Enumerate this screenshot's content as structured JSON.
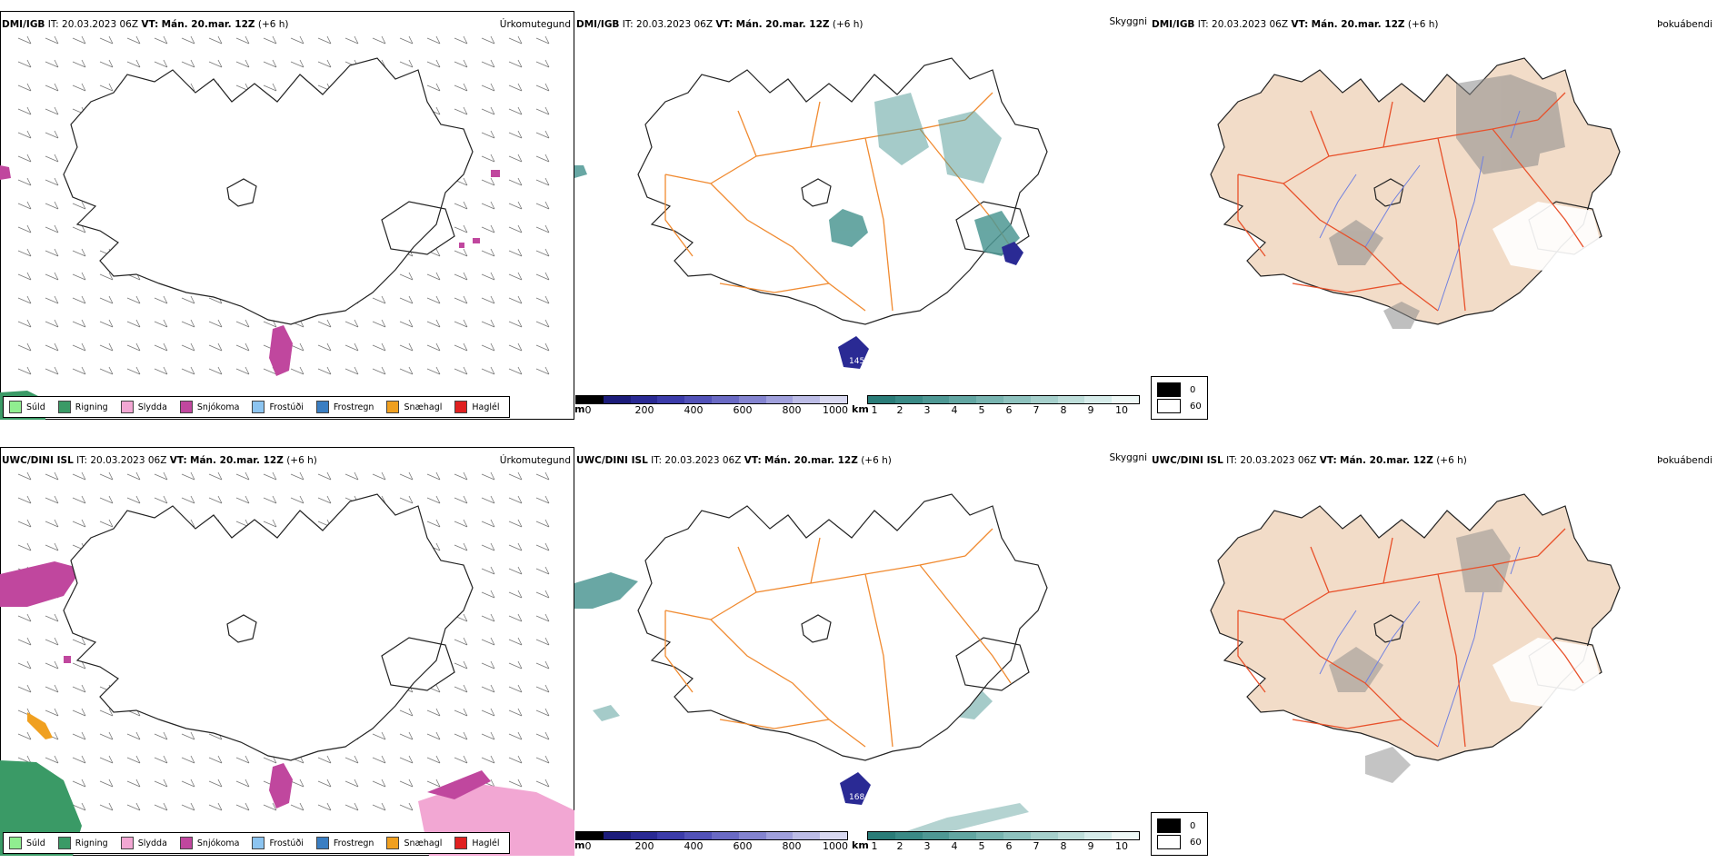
{
  "rows": [
    {
      "model": "DMI/IGB",
      "it_label": "IT:",
      "it_value": "20.03.2023 06Z",
      "vt_label": "VT:",
      "vt_value": "Mán. 20.mar. 12Z",
      "offset": "(+6 h)",
      "precip_type_label": "Úrkomutegund",
      "visibility_label": "Skyggni",
      "fog_label": "Þokuábendi",
      "snow_label": "145"
    },
    {
      "model": "UWC/DINI ISL",
      "it_label": "IT:",
      "it_value": "20.03.2023 06Z",
      "vt_label": "VT:",
      "vt_value": "Mán. 20.mar. 12Z",
      "offset": "(+6 h)",
      "precip_type_label": "Úrkomutegund",
      "visibility_label": "Skyggni",
      "fog_label": "Þokuábendi",
      "snow_label": "168"
    }
  ],
  "precip_legend": [
    {
      "label": "Súld",
      "color": "#90ee90"
    },
    {
      "label": "Rigning",
      "color": "#3a9a66"
    },
    {
      "label": "Slydda",
      "color": "#f2a7d3"
    },
    {
      "label": "Snjókoma",
      "color": "#c0479e"
    },
    {
      "label": "Frostúði",
      "color": "#8cc4f0"
    },
    {
      "label": "Frostregn",
      "color": "#3a7ec2"
    },
    {
      "label": "Snæhagl",
      "color": "#f0a020"
    },
    {
      "label": "Haglél",
      "color": "#e02020"
    }
  ],
  "vis_m": {
    "unit": "m",
    "ticks": [
      "0",
      "200",
      "400",
      "600",
      "800",
      "1000"
    ],
    "colors": [
      "#000000",
      "#1c1c7a",
      "#2a2a94",
      "#3c3caa",
      "#5252b8",
      "#6a6ac4",
      "#8484d0",
      "#a0a0dc",
      "#bcbce6",
      "#d8d8f0"
    ]
  },
  "vis_km": {
    "unit": "km",
    "ticks": [
      "1",
      "2",
      "3",
      "4",
      "5",
      "6",
      "7",
      "8",
      "9",
      "10"
    ],
    "colors": [
      "#2a7c78",
      "#3a8a86",
      "#4e9894",
      "#62a6a2",
      "#78b4b0",
      "#8ec2be",
      "#a6d0cc",
      "#bededa",
      "#d6ecea",
      "#eef8f6"
    ]
  },
  "fog_legend": [
    {
      "label": "0",
      "color": "#000000"
    },
    {
      "label": "60",
      "color": "#ffffff"
    }
  ],
  "colors": {
    "land_fog": "#f2dcc8",
    "roads": "#f08a30",
    "roads_fog": "#e8502a",
    "rivers": "#7080e0",
    "coast": "#222222"
  }
}
